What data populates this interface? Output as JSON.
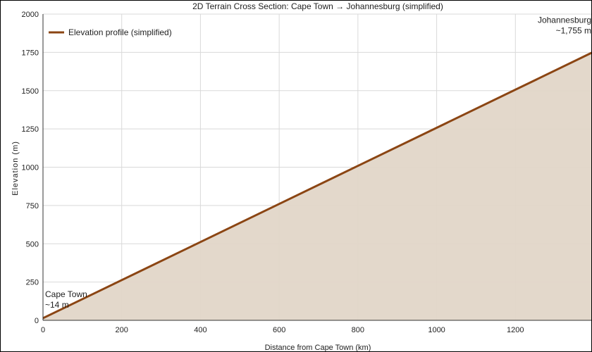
{
  "chart_data": {
    "type": "area",
    "title": "2D Terrain Cross Section: Cape Town → Johannesburg (simplified)",
    "xlabel": "Distance from Cape Town (km)",
    "ylabel": "Elevation (m)",
    "xlim": [
      0,
      1400
    ],
    "ylim": [
      0,
      2000
    ],
    "x_ticks": [
      0,
      200,
      400,
      600,
      800,
      1000,
      1200
    ],
    "y_ticks": [
      0,
      250,
      500,
      750,
      1000,
      1250,
      1500,
      1750,
      2000
    ],
    "grid": true,
    "legend": "top-left",
    "series": [
      {
        "name": "Elevation profile (simplified)",
        "x": [
          0,
          1400
        ],
        "y": [
          14,
          1755
        ],
        "color": "#8B4513",
        "fill": "#e2d6c8"
      }
    ],
    "annotations": [
      {
        "lines": [
          "Cape Town",
          "~14 m"
        ],
        "x": 0,
        "y": 14,
        "align": "left"
      },
      {
        "lines": [
          "Johannesburg",
          "~1,755 m"
        ],
        "x": 1400,
        "y": 1755,
        "align": "right"
      }
    ]
  }
}
